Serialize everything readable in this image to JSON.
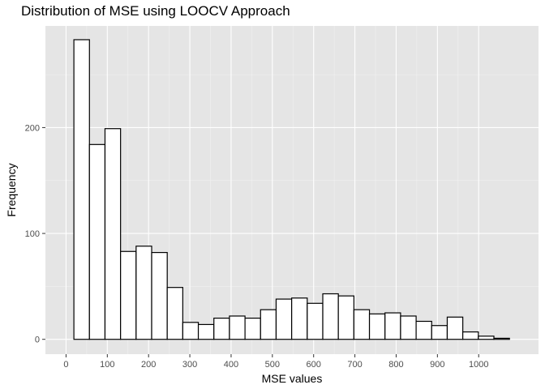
{
  "chart_data": {
    "type": "bar",
    "title": "Distribution of MSE using LOOCV Approach",
    "xlabel": "MSE values",
    "ylabel": "Frequency",
    "xlim": [
      -50,
      1145
    ],
    "ylim": [
      -14,
      296
    ],
    "x_ticks": [
      0,
      100,
      200,
      300,
      400,
      500,
      600,
      700,
      800,
      900,
      1000
    ],
    "y_ticks": [
      0,
      100,
      200
    ],
    "bin_width": 37.7,
    "bin_start": 19,
    "values": [
      283,
      184,
      199,
      83,
      88,
      82,
      49,
      16,
      14,
      20,
      22,
      20,
      28,
      38,
      39,
      34,
      43,
      41,
      28,
      24,
      25,
      22,
      17,
      13,
      21,
      7,
      3,
      1
    ],
    "bar_fill": "#ffffff",
    "bar_outline": "#000000",
    "panel_background": "#e5e5e5",
    "grid": true
  }
}
